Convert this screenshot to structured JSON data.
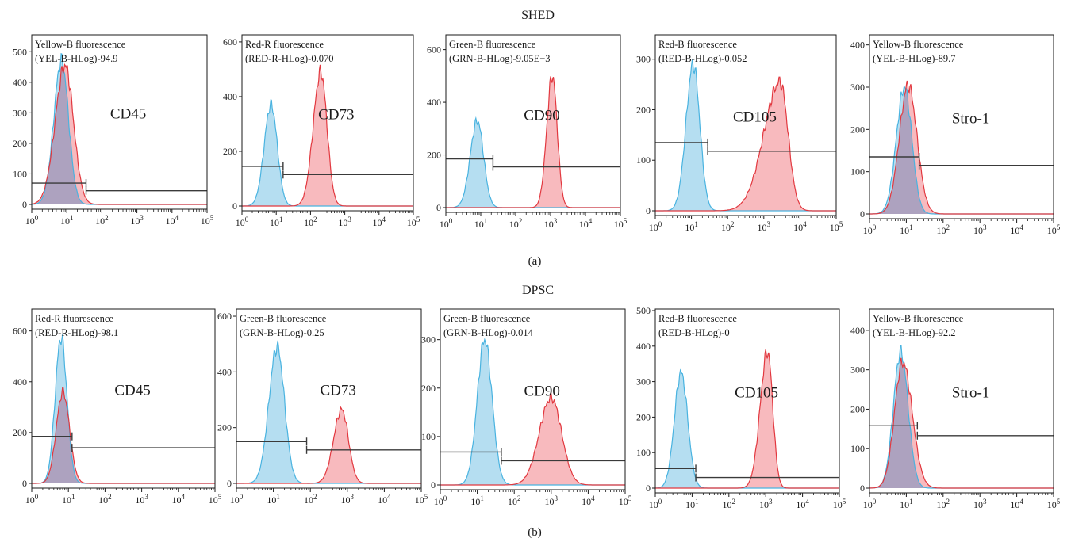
{
  "rows": [
    {
      "title": "SHED",
      "caption": "(a)",
      "panels": [
        {
          "marker": "CD45",
          "channel_line1": "Yellow-B fluorescence",
          "channel_line2": "(YEL-B-HLog)-94.9",
          "ymax": 550,
          "yticks": [
            0,
            100,
            200,
            300,
            400,
            500
          ],
          "blue": {
            "peak_log": 0.85,
            "sd_left": 0.22,
            "sd_right": 0.2,
            "height": 470
          },
          "red": {
            "peak_log": 0.95,
            "sd_left": 0.28,
            "sd_right": 0.24,
            "height": 455
          },
          "gate_neg": {
            "x0_log": 0,
            "x1_log": 1.55,
            "y": 70
          },
          "gate_pos": {
            "x0_log": 1.55,
            "x1_log": 5,
            "y": 45
          }
        },
        {
          "marker": "CD73",
          "channel_line1": "Red-R fluorescence",
          "channel_line2": "(RED-R-HLog)-0.070",
          "ymax": 620,
          "yticks": [
            0,
            200,
            400,
            600
          ],
          "blue": {
            "peak_log": 0.85,
            "sd_left": 0.2,
            "sd_right": 0.18,
            "height": 370
          },
          "red": {
            "peak_log": 2.3,
            "sd_left": 0.22,
            "sd_right": 0.18,
            "height": 490
          },
          "gate_neg": {
            "x0_log": 0,
            "x1_log": 1.2,
            "y": 145
          },
          "gate_pos": {
            "x0_log": 1.2,
            "x1_log": 5,
            "y": 115
          }
        },
        {
          "marker": "CD90",
          "channel_line1": "Green-B fluorescence",
          "channel_line2": "(GRN-B-HLog)-9.05E−3",
          "ymax": 650,
          "yticks": [
            0,
            200,
            400,
            600
          ],
          "blue": {
            "peak_log": 0.9,
            "sd_left": 0.2,
            "sd_right": 0.18,
            "height": 330
          },
          "red": {
            "peak_log": 3.05,
            "sd_left": 0.16,
            "sd_right": 0.14,
            "height": 500
          },
          "gate_neg": {
            "x0_log": 0,
            "x1_log": 1.35,
            "y": 185
          },
          "gate_pos": {
            "x0_log": 1.35,
            "x1_log": 5,
            "y": 155
          }
        },
        {
          "marker": "CD105",
          "channel_line1": "Red-B fluorescence",
          "channel_line2": "(RED-B-HLog)-0.052",
          "ymax": 345,
          "yticks": [
            0,
            100,
            200,
            300
          ],
          "blue": {
            "peak_log": 1.05,
            "sd_left": 0.2,
            "sd_right": 0.18,
            "height": 290
          },
          "red": {
            "peak_log": 3.45,
            "sd_left": 0.45,
            "sd_right": 0.22,
            "height": 255
          },
          "gate_neg": {
            "x0_log": 0,
            "x1_log": 1.45,
            "y": 135
          },
          "gate_pos": {
            "x0_log": 1.45,
            "x1_log": 5,
            "y": 118
          }
        },
        {
          "marker": "Stro-1",
          "channel_line1": "Yellow-B fluorescence",
          "channel_line2": "(YEL-B-HLog)-89.7",
          "ymax": 420,
          "yticks": [
            0,
            100,
            200,
            300,
            400
          ],
          "blue": {
            "peak_log": 0.95,
            "sd_left": 0.22,
            "sd_right": 0.2,
            "height": 300
          },
          "red": {
            "peak_log": 1.05,
            "sd_left": 0.24,
            "sd_right": 0.24,
            "height": 305
          },
          "gate_neg": {
            "x0_log": 0,
            "x1_log": 1.35,
            "y": 135
          },
          "gate_pos": {
            "x0_log": 1.35,
            "x1_log": 5,
            "y": 115
          }
        }
      ]
    },
    {
      "title": "DPSC",
      "caption": "(b)",
      "panels": [
        {
          "marker": "CD45",
          "channel_line1": "Red-R fluorescence",
          "channel_line2": "(RED-R-HLog)-98.1",
          "ymax": 680,
          "yticks": [
            0,
            200,
            400,
            600
          ],
          "blue": {
            "peak_log": 0.8,
            "sd_left": 0.16,
            "sd_right": 0.16,
            "height": 575
          },
          "red": {
            "peak_log": 0.85,
            "sd_left": 0.18,
            "sd_right": 0.18,
            "height": 360
          },
          "gate_neg": {
            "x0_log": 0,
            "x1_log": 1.1,
            "y": 185
          },
          "gate_pos": {
            "x0_log": 1.1,
            "x1_log": 5,
            "y": 140
          }
        },
        {
          "marker": "CD73",
          "channel_line1": "Green-B fluorescence",
          "channel_line2": "(GRN-B-HLog)-0.25",
          "ymax": 620,
          "yticks": [
            0,
            200,
            400,
            600
          ],
          "blue": {
            "peak_log": 1.1,
            "sd_left": 0.22,
            "sd_right": 0.2,
            "height": 490
          },
          "red": {
            "peak_log": 2.85,
            "sd_left": 0.22,
            "sd_right": 0.18,
            "height": 265
          },
          "gate_neg": {
            "x0_log": 0,
            "x1_log": 1.9,
            "y": 150
          },
          "gate_pos": {
            "x0_log": 1.9,
            "x1_log": 5,
            "y": 120
          }
        },
        {
          "marker": "CD90",
          "channel_line1": "Green-B fluorescence",
          "channel_line2": "(GRN-B-HLog)-0.014",
          "ymax": 360,
          "yticks": [
            0,
            100,
            200,
            300
          ],
          "blue": {
            "peak_log": 1.2,
            "sd_left": 0.2,
            "sd_right": 0.2,
            "height": 300
          },
          "red": {
            "peak_log": 3.0,
            "sd_left": 0.32,
            "sd_right": 0.28,
            "height": 180
          },
          "gate_neg": {
            "x0_log": 0,
            "x1_log": 1.65,
            "y": 68
          },
          "gate_pos": {
            "x0_log": 1.65,
            "x1_log": 5,
            "y": 50
          }
        },
        {
          "marker": "CD105",
          "channel_line1": "Red-B fluorescence",
          "channel_line2": "(RED-B-HLog)-0",
          "ymax": 500,
          "yticks": [
            0,
            100,
            200,
            300,
            400,
            500
          ],
          "blue": {
            "peak_log": 0.7,
            "sd_left": 0.18,
            "sd_right": 0.18,
            "height": 325
          },
          "red": {
            "peak_log": 3.05,
            "sd_left": 0.2,
            "sd_right": 0.14,
            "height": 385
          },
          "gate_neg": {
            "x0_log": 0,
            "x1_log": 1.1,
            "y": 55
          },
          "gate_pos": {
            "x0_log": 1.1,
            "x1_log": 5,
            "y": 30
          }
        },
        {
          "marker": "Stro-1",
          "channel_line1": "Yellow-B fluorescence",
          "channel_line2": "(YEL-B-HLog)-92.2",
          "ymax": 450,
          "yticks": [
            0,
            100,
            200,
            300,
            400
          ],
          "blue": {
            "peak_log": 0.85,
            "sd_left": 0.2,
            "sd_right": 0.2,
            "height": 345
          },
          "red": {
            "peak_log": 0.9,
            "sd_left": 0.22,
            "sd_right": 0.26,
            "height": 320
          },
          "gate_neg": {
            "x0_log": 0,
            "x1_log": 1.3,
            "y": 158
          },
          "gate_pos": {
            "x0_log": 1.3,
            "x1_log": 5,
            "y": 133
          }
        }
      ]
    }
  ],
  "x_axis": {
    "min_log": 0,
    "max_log": 5,
    "decades": [
      0,
      1,
      2,
      3,
      4,
      5
    ],
    "base_label": "10"
  },
  "colors": {
    "blue_fill": "#a8d8ee",
    "blue_line": "#49b3e0",
    "red_fill": "#f5a3a8",
    "red_line": "#e2383f",
    "overlap_fill": "#9a9cc0",
    "gate": "#3a3a3a",
    "axis": "#1a1a1a"
  },
  "chart_data": [
    {
      "type": "area",
      "scale_x": "log",
      "xlim": [
        1,
        100000
      ],
      "title": "SHED",
      "panel": "CD45",
      "series": [
        {
          "values": [
            [
              7,
              470
            ]
          ]
        },
        {
          "values": [
            [
              9,
              455
            ]
          ]
        }
      ],
      "gates": [
        {
          "x": [
            1,
            35
          ],
          "y": 70
        },
        {
          "x": [
            35,
            100000
          ],
          "y": 45
        }
      ]
    },
    {
      "type": "area",
      "scale_x": "log",
      "xlim": [
        1,
        100000
      ],
      "title": "SHED",
      "panel": "CD73",
      "series": [
        {
          "values": [
            [
              7,
              370
            ]
          ]
        },
        {
          "values": [
            [
              200,
              490
            ]
          ]
        }
      ],
      "gates": [
        {
          "x": [
            1,
            16
          ],
          "y": 145
        },
        {
          "x": [
            16,
            100000
          ],
          "y": 115
        }
      ]
    },
    {
      "type": "area",
      "scale_x": "log",
      "xlim": [
        1,
        100000
      ],
      "title": "SHED",
      "panel": "CD90",
      "series": [
        {
          "values": [
            [
              8,
              330
            ]
          ]
        },
        {
          "values": [
            [
              1100,
              500
            ]
          ]
        }
      ],
      "gates": [
        {
          "x": [
            1,
            22
          ],
          "y": 185
        },
        {
          "x": [
            22,
            100000
          ],
          "y": 155
        }
      ]
    },
    {
      "type": "area",
      "scale_x": "log",
      "xlim": [
        1,
        100000
      ],
      "title": "SHED",
      "panel": "CD105",
      "series": [
        {
          "values": [
            [
              11,
              290
            ]
          ]
        },
        {
          "values": [
            [
              2800,
              255
            ]
          ]
        }
      ],
      "gates": [
        {
          "x": [
            1,
            28
          ],
          "y": 135
        },
        {
          "x": [
            28,
            100000
          ],
          "y": 118
        }
      ]
    },
    {
      "type": "area",
      "scale_x": "log",
      "xlim": [
        1,
        100000
      ],
      "title": "SHED",
      "panel": "Stro-1",
      "series": [
        {
          "values": [
            [
              9,
              300
            ]
          ]
        },
        {
          "values": [
            [
              11,
              305
            ]
          ]
        }
      ],
      "gates": [
        {
          "x": [
            1,
            22
          ],
          "y": 135
        },
        {
          "x": [
            22,
            100000
          ],
          "y": 115
        }
      ]
    },
    {
      "type": "area",
      "scale_x": "log",
      "xlim": [
        1,
        100000
      ],
      "title": "DPSC",
      "panel": "CD45",
      "series": [
        {
          "values": [
            [
              6,
              575
            ]
          ]
        },
        {
          "values": [
            [
              7,
              360
            ]
          ]
        }
      ],
      "gates": [
        {
          "x": [
            1,
            13
          ],
          "y": 185
        },
        {
          "x": [
            13,
            100000
          ],
          "y": 140
        }
      ]
    },
    {
      "type": "area",
      "scale_x": "log",
      "xlim": [
        1,
        100000
      ],
      "title": "DPSC",
      "panel": "CD73",
      "series": [
        {
          "values": [
            [
              13,
              490
            ]
          ]
        },
        {
          "values": [
            [
              700,
              265
            ]
          ]
        }
      ],
      "gates": [
        {
          "x": [
            1,
            80
          ],
          "y": 150
        },
        {
          "x": [
            80,
            100000
          ],
          "y": 120
        }
      ]
    },
    {
      "type": "area",
      "scale_x": "log",
      "xlim": [
        1,
        100000
      ],
      "title": "DPSC",
      "panel": "CD90",
      "series": [
        {
          "values": [
            [
              16,
              300
            ]
          ]
        },
        {
          "values": [
            [
              1000,
              180
            ]
          ]
        }
      ],
      "gates": [
        {
          "x": [
            1,
            45
          ],
          "y": 68
        },
        {
          "x": [
            45,
            100000
          ],
          "y": 50
        }
      ]
    },
    {
      "type": "area",
      "scale_x": "log",
      "xlim": [
        1,
        100000
      ],
      "title": "DPSC",
      "panel": "CD105",
      "series": [
        {
          "values": [
            [
              5,
              325
            ]
          ]
        },
        {
          "values": [
            [
              1100,
              385
            ]
          ]
        }
      ],
      "gates": [
        {
          "x": [
            1,
            13
          ],
          "y": 55
        },
        {
          "x": [
            13,
            100000
          ],
          "y": 30
        }
      ]
    },
    {
      "type": "area",
      "scale_x": "log",
      "xlim": [
        1,
        100000
      ],
      "title": "DPSC",
      "panel": "Stro-1",
      "series": [
        {
          "values": [
            [
              7,
              345
            ]
          ]
        },
        {
          "values": [
            [
              8,
              320
            ]
          ]
        }
      ],
      "gates": [
        {
          "x": [
            1,
            20
          ],
          "y": 158
        },
        {
          "x": [
            20,
            100000
          ],
          "y": 133
        }
      ]
    }
  ]
}
